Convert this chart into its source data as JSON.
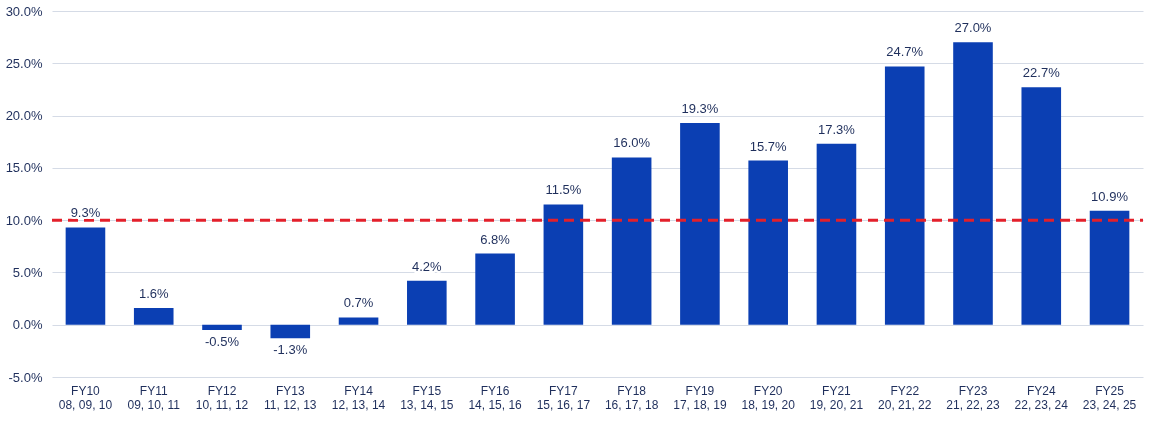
{
  "chart_data": {
    "type": "bar",
    "categories": [
      "FY10\n08, 09, 10",
      "FY11\n09, 10, 11",
      "FY12\n10, 11, 12",
      "FY13\n11, 12, 13",
      "FY14\n12, 13, 14",
      "FY15\n13, 14, 15",
      "FY16\n14, 15, 16",
      "FY17\n15, 16, 17",
      "FY18\n16, 17, 18",
      "FY19\n17, 18, 19",
      "FY20\n18, 19, 20",
      "FY21\n19, 20, 21",
      "FY22\n20, 21, 22",
      "FY23\n21, 22, 23",
      "FY24\n22, 23, 24",
      "FY25\n23, 24, 25"
    ],
    "series": [
      {
        "color": "#0b3fb3",
        "values": [
          9.3,
          1.6,
          -0.5,
          -1.3,
          0.7,
          4.2,
          6.8,
          11.5,
          16.0,
          19.3,
          15.7,
          17.3,
          24.7,
          27.0,
          22.7,
          10.9
        ],
        "value_labels": [
          "9.3%",
          "1.6%",
          "-0.5%",
          "-1.3%",
          "0.7%",
          "4.2%",
          "6.8%",
          "11.5%",
          "16.0%",
          "19.3%",
          "15.7%",
          "17.3%",
          "24.7%",
          "27.0%",
          "22.7%",
          "10.9%"
        ]
      }
    ],
    "ylim": [
      -5,
      30
    ],
    "yticks": [
      {
        "value": -5,
        "label": "-5.0%"
      },
      {
        "value": 0,
        "label": "0.0%"
      },
      {
        "value": 5,
        "label": "5.0%"
      },
      {
        "value": 10,
        "label": "10.0%"
      },
      {
        "value": 15,
        "label": "15.0%"
      },
      {
        "value": 20,
        "label": "20.0%"
      },
      {
        "value": 25,
        "label": "25.0%"
      },
      {
        "value": 30,
        "label": "30.0%"
      }
    ],
    "ref_lines": [
      {
        "axis": "y",
        "value": 10,
        "color": "#e3202b",
        "line_style": "dashed"
      }
    ],
    "grid": "y"
  }
}
